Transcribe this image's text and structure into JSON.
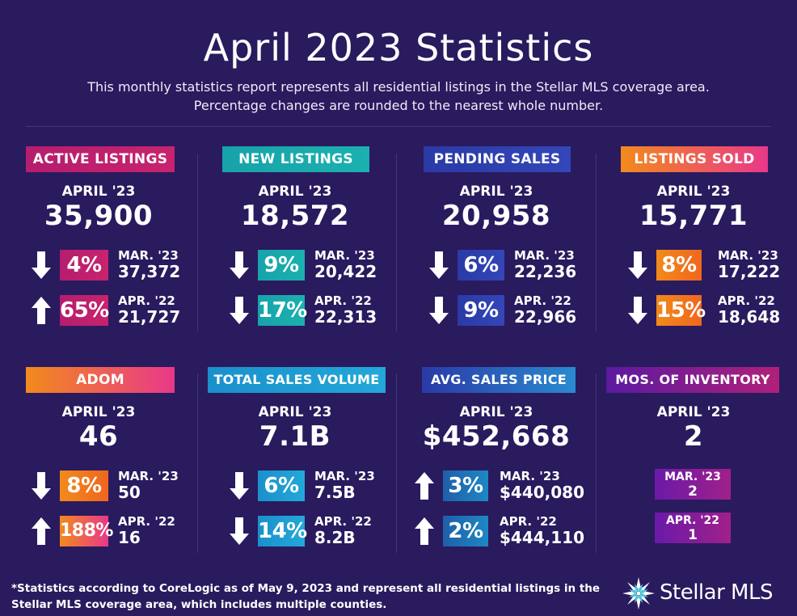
{
  "header": {
    "title": "April 2023 Statistics",
    "subtitle_line1": "This monthly statistics report represents all residential listings in the Stellar MLS coverage area.",
    "subtitle_line2": "Percentage changes are rounded to the nearest whole number."
  },
  "colors": {
    "background": "#2a1a5e",
    "magenta": "#b51d6e",
    "teal": "#1a9fa8",
    "blue": "#2b3aa8",
    "orange": "#f07a1e",
    "sky": "#1f84c8",
    "purple": "#6a1aa8"
  },
  "cards": [
    {
      "label": "ACTIVE LISTINGS",
      "period": "APRIL '23",
      "value": "35,900",
      "rows": [
        {
          "direction": "down",
          "pct": "4%",
          "label": "MAR. '23",
          "value": "37,372"
        },
        {
          "direction": "up",
          "pct": "65%",
          "label": "APR. '22",
          "value": "21,727"
        }
      ]
    },
    {
      "label": "NEW LISTINGS",
      "period": "APRIL '23",
      "value": "18,572",
      "rows": [
        {
          "direction": "down",
          "pct": "9%",
          "label": "MAR. '23",
          "value": "20,422"
        },
        {
          "direction": "down",
          "pct": "17%",
          "label": "APR. '22",
          "value": "22,313"
        }
      ]
    },
    {
      "label": "PENDING SALES",
      "period": "APRIL '23",
      "value": "20,958",
      "rows": [
        {
          "direction": "down",
          "pct": "6%",
          "label": "MAR. '23",
          "value": "22,236"
        },
        {
          "direction": "down",
          "pct": "9%",
          "label": "APR. '22",
          "value": "22,966"
        }
      ]
    },
    {
      "label": "LISTINGS SOLD",
      "period": "APRIL '23",
      "value": "15,771",
      "rows": [
        {
          "direction": "down",
          "pct": "8%",
          "label": "MAR. '23",
          "value": "17,222"
        },
        {
          "direction": "down",
          "pct": "15%",
          "label": "APR. '22",
          "value": "18,648"
        }
      ]
    },
    {
      "label": "ADOM",
      "period": "APRIL '23",
      "value": "46",
      "rows": [
        {
          "direction": "down",
          "pct": "8%",
          "label": "MAR. '23",
          "value": "50"
        },
        {
          "direction": "up",
          "pct": "188%",
          "label": "APR. '22",
          "value": "16"
        }
      ]
    },
    {
      "label": "TOTAL SALES VOLUME",
      "period": "APRIL '23",
      "value": "7.1B",
      "rows": [
        {
          "direction": "down",
          "pct": "6%",
          "label": "MAR. '23",
          "value": "7.5B"
        },
        {
          "direction": "down",
          "pct": "14%",
          "label": "APR. '22",
          "value": "8.2B"
        }
      ]
    },
    {
      "label": "AVG. SALES PRICE",
      "period": "APRIL '23",
      "value": "$452,668",
      "rows": [
        {
          "direction": "up",
          "pct": "3%",
          "label": "MAR. '23",
          "value": "$440,080"
        },
        {
          "direction": "up",
          "pct": "2%",
          "label": "APR. '22",
          "value": "$444,110"
        }
      ]
    },
    {
      "label": "MOS. OF INVENTORY",
      "period": "APRIL '23",
      "value": "2",
      "boxes": [
        {
          "label": "MAR. '23",
          "value": "2"
        },
        {
          "label": "APR. '22",
          "value": "1"
        }
      ]
    }
  ],
  "footer": {
    "line1": "*Statistics according to CoreLogic as of May 9, 2023 and represent all residential listings in the",
    "line2": "Stellar MLS coverage area, which includes multiple counties."
  },
  "logo": {
    "text": "Stellar MLS",
    "icon": "star-burst-icon"
  }
}
